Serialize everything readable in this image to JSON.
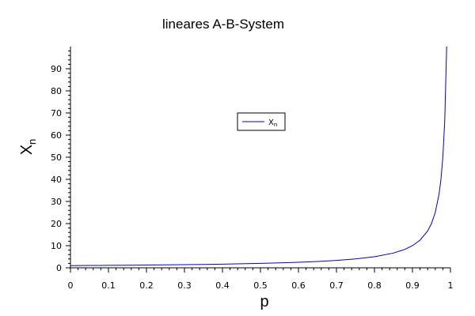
{
  "chart_data": {
    "type": "line",
    "title": "lineares A-B-System",
    "xlabel": "p",
    "ylabel": "X",
    "ylabel_sub": "n",
    "xlim": [
      0,
      1
    ],
    "ylim": [
      0,
      100
    ],
    "xticks": [
      0,
      0.1,
      0.2,
      0.3,
      0.4,
      0.5,
      0.6,
      0.7,
      0.8,
      0.9,
      1
    ],
    "xtick_labels": [
      "0",
      "0.1",
      "0.2",
      "0.3",
      "0.4",
      "0.5",
      "0.6",
      "0.7",
      "0.8",
      "0.9",
      "1"
    ],
    "yticks": [
      0,
      10,
      20,
      30,
      40,
      50,
      60,
      70,
      80,
      90
    ],
    "ytick_labels": [
      "0",
      "10",
      "20",
      "30",
      "40",
      "50",
      "60",
      "70",
      "80",
      "90"
    ],
    "grid": false,
    "legend_position": "center",
    "series": [
      {
        "name": "X",
        "name_sub": "n",
        "color": "#0000cc",
        "x": [
          0,
          0.05,
          0.1,
          0.15,
          0.2,
          0.25,
          0.3,
          0.35,
          0.4,
          0.45,
          0.5,
          0.55,
          0.6,
          0.65,
          0.7,
          0.75,
          0.8,
          0.85,
          0.88,
          0.9,
          0.92,
          0.94,
          0.95,
          0.96,
          0.97,
          0.975,
          0.98,
          0.985,
          0.99
        ],
        "y": [
          1,
          1.05,
          1.11,
          1.18,
          1.25,
          1.33,
          1.43,
          1.54,
          1.67,
          1.82,
          2,
          2.22,
          2.5,
          2.86,
          3.33,
          4,
          5,
          6.67,
          8.33,
          10,
          12.5,
          16.67,
          20,
          25,
          33.33,
          40,
          50,
          66.67,
          100
        ]
      }
    ]
  }
}
